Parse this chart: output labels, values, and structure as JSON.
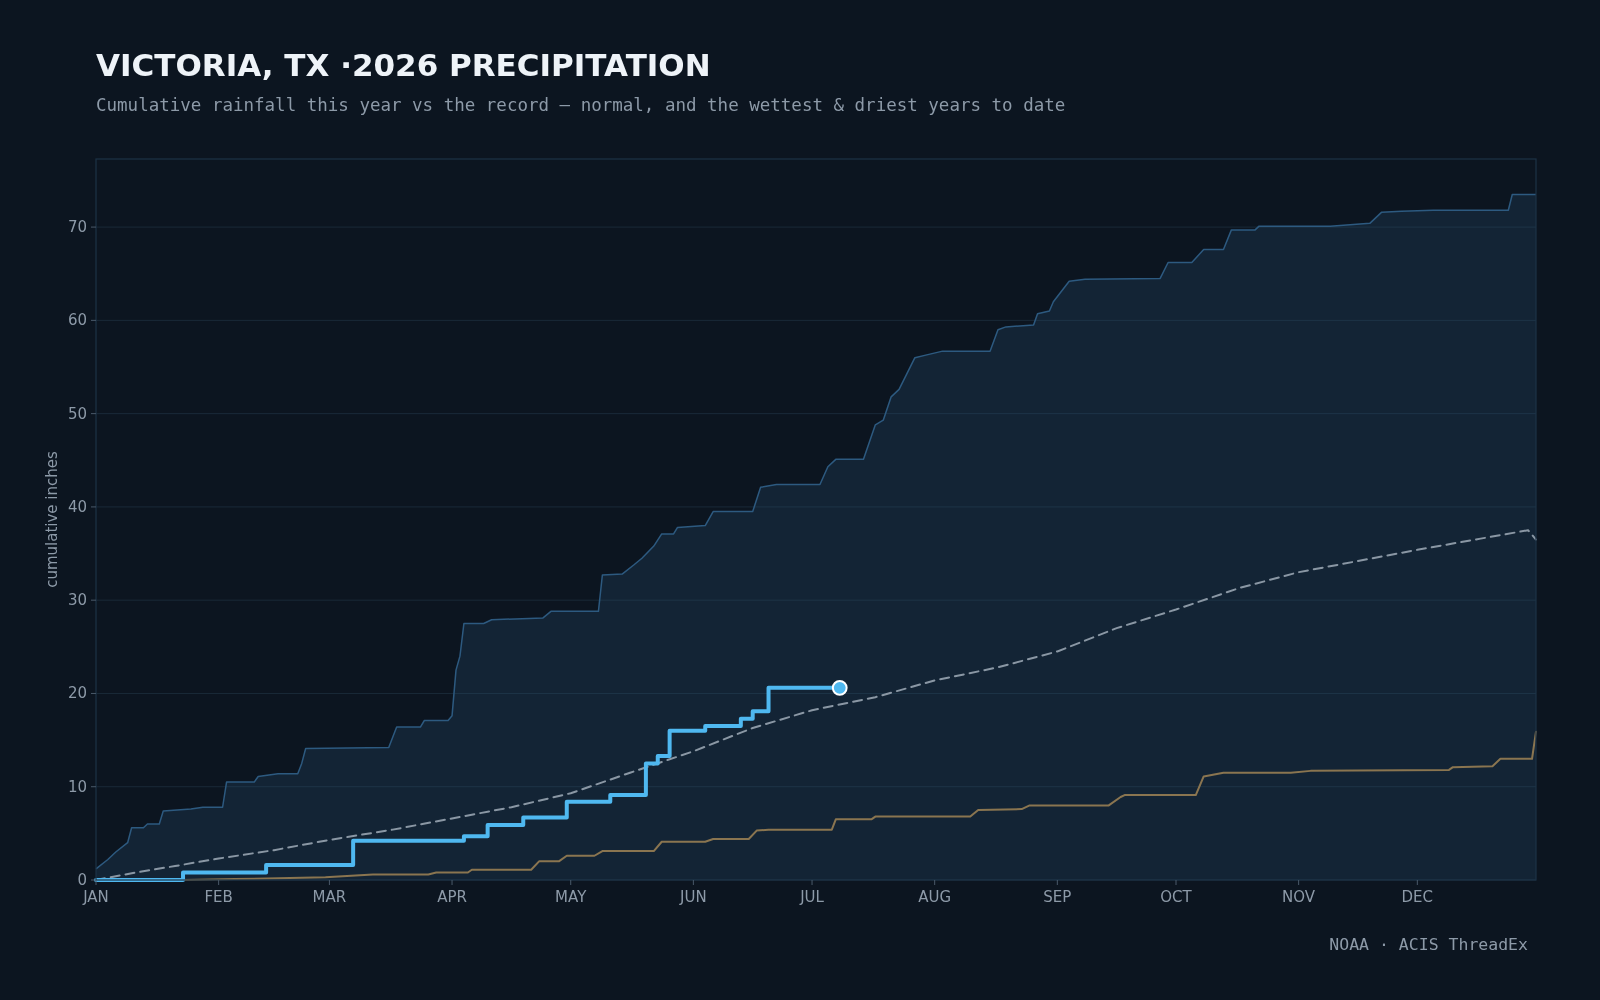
{
  "chart_data": {
    "type": "line",
    "title": "VICTORIA, TX ·2026 PRECIPITATION",
    "subtitle": "Cumulative rainfall this year vs the record — normal, and the wettest & driest years to date",
    "ylabel": "cumulative inches",
    "annotations": [
      "NOAA · ACIS ThreadEx"
    ],
    "xlim": [
      "--01-01",
      "--12-31"
    ],
    "xticks": [
      {
        "value": "--01-01",
        "label": "JAN"
      },
      {
        "value": "--02-01",
        "label": "FEB"
      },
      {
        "value": "--03-01",
        "label": "MAR"
      },
      {
        "value": "--04-01",
        "label": "APR"
      },
      {
        "value": "--05-01",
        "label": "MAY"
      },
      {
        "value": "--06-01",
        "label": "JUN"
      },
      {
        "value": "--07-01",
        "label": "JUL"
      },
      {
        "value": "--08-01",
        "label": "AUG"
      },
      {
        "value": "--09-01",
        "label": "SEP"
      },
      {
        "value": "--10-01",
        "label": "OCT"
      },
      {
        "value": "--11-01",
        "label": "NOV"
      },
      {
        "value": "--12-01",
        "label": "DEC"
      }
    ],
    "ylim": [
      0,
      77.3
    ],
    "yticks": [
      0,
      10,
      20,
      30,
      40,
      50,
      60,
      70
    ],
    "grid": "y",
    "series": [
      {
        "type": "area",
        "color": "#2d5a80",
        "x": [
          "--01-01",
          "--01-04",
          "--01-06",
          "--01-09",
          "--01-10",
          "--01-13",
          "--01-14",
          "--01-17",
          "--01-18",
          "--01-25",
          "--01-28",
          "--02-02",
          "--02-03",
          "--02-10",
          "--02-11",
          "--02-16",
          "--02-21",
          "--02-22",
          "--02-23",
          "--03-16",
          "--03-18",
          "--03-24",
          "--03-25",
          "--03-31",
          "--04-01",
          "--04-02",
          "--04-03",
          "--04-04",
          "--04-09",
          "--04-11",
          "--04-24",
          "--04-26",
          "--05-08",
          "--05-09",
          "--05-14",
          "--05-17",
          "--05-19",
          "--05-22",
          "--05-24",
          "--05-27",
          "--05-28",
          "--06-04",
          "--06-06",
          "--06-16",
          "--06-18",
          "--06-22",
          "--07-03",
          "--07-05",
          "--07-07",
          "--07-14",
          "--07-17",
          "--07-19",
          "--07-21",
          "--07-23",
          "--07-27",
          "--07-30",
          "--08-03",
          "--08-15",
          "--08-17",
          "--08-19",
          "--08-26",
          "--08-27",
          "--08-30",
          "--08-31",
          "--09-04",
          "--09-08",
          "--09-27",
          "--09-29",
          "--10-05",
          "--10-08",
          "--10-13",
          "--10-15",
          "--10-21",
          "--10-22",
          "--11-09",
          "--11-19",
          "--11-22",
          "--11-27",
          "--12-05",
          "--12-24",
          "--12-25",
          "--12-31"
        ],
        "values": [
          1.2,
          2.2,
          3.0,
          4.0,
          5.6,
          5.6,
          6.0,
          6.0,
          7.4,
          7.6,
          7.8,
          7.8,
          10.5,
          10.5,
          11.1,
          11.4,
          11.4,
          12.5,
          14.1,
          14.2,
          16.4,
          16.4,
          17.1,
          17.1,
          17.6,
          22.5,
          24,
          27.5,
          27.5,
          27.9,
          28.1,
          28.8,
          28.8,
          32.7,
          32.8,
          33.8,
          34.5,
          35.8,
          37.1,
          37.1,
          37.8,
          38.0,
          39.5,
          39.5,
          42.1,
          42.4,
          42.4,
          44.3,
          45.1,
          45.1,
          48.8,
          49.3,
          51.8,
          52.6,
          56,
          56.3,
          56.7,
          56.7,
          59.0,
          59.3,
          59.5,
          60.7,
          61,
          62,
          64.2,
          64.4,
          64.5,
          66.2,
          66.2,
          67.6,
          67.6,
          69.7,
          69.7,
          70.1,
          70.1,
          70.4,
          71.6,
          71.7,
          71.8,
          71.8,
          73.5,
          73.5
        ]
      },
      {
        "color": "#8a7550",
        "x": [
          "--01-01",
          "--01-23",
          "--02-05",
          "--02-28",
          "--03-12",
          "--03-26",
          "--03-28",
          "--04-05",
          "--04-06",
          "--04-21",
          "--04-23",
          "--04-28",
          "--04-30",
          "--05-07",
          "--05-09",
          "--05-22",
          "--05-24",
          "--06-04",
          "--06-06",
          "--06-15",
          "--06-17",
          "--06-20",
          "--07-06",
          "--07-07",
          "--07-16",
          "--07-17",
          "--08-10",
          "--08-12",
          "--08-23",
          "--08-25",
          "--09-14",
          "--09-17",
          "--09-18",
          "--10-06",
          "--10-08",
          "--10-13",
          "--10-30",
          "--11-04",
          "--12-09",
          "--12-10",
          "--12-20",
          "--12-22",
          "--12-30",
          "--12-31"
        ],
        "values": [
          0,
          0,
          0.1,
          0.3,
          0.6,
          0.6,
          0.8,
          0.8,
          1.1,
          1.1,
          2.0,
          2.0,
          2.6,
          2.6,
          3.1,
          3.1,
          4.1,
          4.1,
          4.4,
          4.4,
          5.3,
          5.4,
          5.4,
          6.5,
          6.5,
          6.8,
          6.8,
          7.5,
          7.6,
          8.0,
          8.0,
          8.9,
          9.1,
          9.1,
          11.1,
          11.5,
          11.5,
          11.7,
          11.8,
          12.1,
          12.2,
          13.0,
          13.0,
          15.9
        ]
      },
      {
        "color": "#8a97a4",
        "line_style": "dashed",
        "x": [
          "--01-01",
          "--01-11",
          "--01-21",
          "--02-01",
          "--02-15",
          "--03-01",
          "--03-17",
          "--04-01",
          "--04-16",
          "--05-01",
          "--05-16",
          "--06-01",
          "--06-16",
          "--07-01",
          "--07-17",
          "--08-01",
          "--08-17",
          "--09-01",
          "--09-16",
          "--10-01",
          "--10-17",
          "--11-01",
          "--11-16",
          "--12-01",
          "--12-17",
          "--12-29",
          "--12-31"
        ],
        "values": [
          0,
          0.8,
          1.5,
          2.3,
          3.2,
          4.3,
          5.4,
          6.6,
          7.8,
          9.3,
          11.5,
          13.8,
          16.3,
          18.2,
          19.6,
          21.4,
          22.8,
          24.5,
          27.0,
          29.0,
          31.3,
          33.0,
          34.2,
          35.4,
          36.6,
          37.5,
          36.5
        ]
      },
      {
        "type": "step",
        "color": "#4fb8f0",
        "x": [
          "--01-01",
          "--01-23",
          "--02-13",
          "--03-07",
          "--04-04",
          "--04-10",
          "--04-19",
          "--04-30",
          "--05-11",
          "--05-20",
          "--05-23",
          "--05-26",
          "--06-04",
          "--06-13",
          "--06-16",
          "--06-20",
          "--07-08"
        ],
        "values": [
          0,
          0.8,
          1.6,
          4.2,
          4.7,
          5.9,
          6.7,
          8.4,
          9.1,
          12.5,
          13.3,
          16.0,
          16.5,
          17.3,
          18.1,
          20.6,
          20.6
        ]
      },
      {
        "type": "scatter",
        "color": "#4fb8f0",
        "marker": "circle",
        "x": [
          "--07-08"
        ],
        "values": [
          20.6
        ]
      }
    ]
  }
}
